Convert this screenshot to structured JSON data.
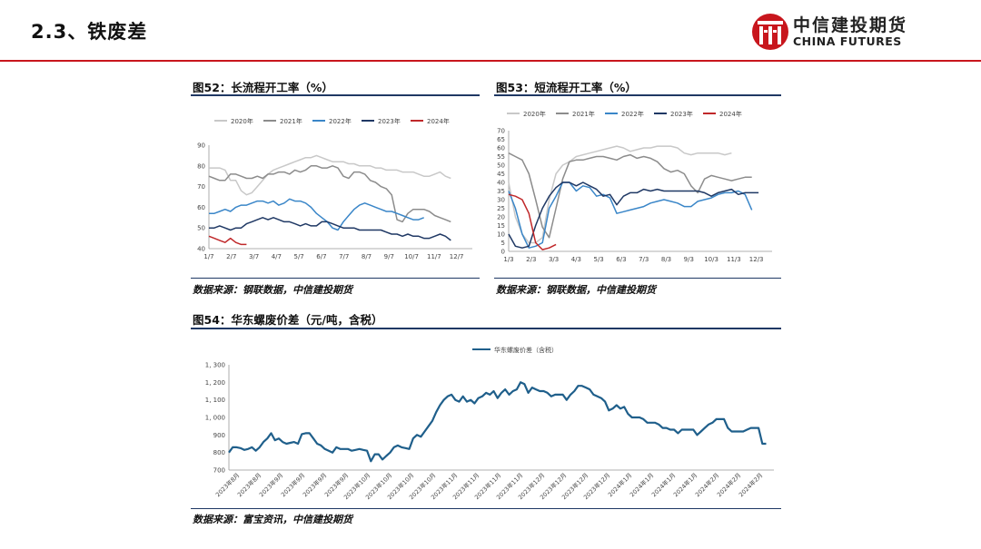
{
  "header": {
    "section_title": "2.3、铁废差",
    "logo_cn": "中信建投期货",
    "logo_en": "CHINA FUTURES"
  },
  "figures": {
    "fig52": {
      "title": "图52：长流程开工率（%）",
      "source": "数据来源：钢联数据，中信建投期货"
    },
    "fig53": {
      "title": "图53：短流程开工率（%）",
      "source": "数据来源：钢联数据，中信建投期货"
    },
    "fig54": {
      "title": "图54：华东螺废价差（元/吨，含税）",
      "source": "数据来源：富宝资讯，中信建投期货"
    }
  },
  "colors": {
    "2020": "#c8c8c8",
    "2021": "#8c8c8c",
    "2022": "#3a86c8",
    "2023": "#1f3864",
    "2024": "#c0282a",
    "spread": "#1f5f8b"
  },
  "chart_data": [
    {
      "id": "fig52",
      "type": "line",
      "x_ticks": [
        "1/7",
        "2/7",
        "3/7",
        "4/7",
        "5/7",
        "6/7",
        "7/7",
        "8/7",
        "9/7",
        "10/7",
        "11/7",
        "12/7"
      ],
      "ylim": [
        40,
        90
      ],
      "y_ticks": [
        40,
        50,
        60,
        70,
        80,
        90
      ],
      "legend_position": "top",
      "grid": false,
      "series": [
        {
          "name": "2020年",
          "color_key": "2020",
          "values": [
            79,
            79,
            79,
            78,
            73,
            73,
            68,
            66,
            67,
            70,
            73,
            76,
            78,
            79,
            80,
            81,
            82,
            83,
            84,
            84,
            85,
            84,
            83,
            82,
            82,
            82,
            81,
            81,
            80,
            80,
            80,
            79,
            79,
            78,
            78,
            78,
            77,
            77,
            77,
            76,
            75,
            75,
            76,
            77,
            75,
            74
          ]
        },
        {
          "name": "2021年",
          "color_key": "2021",
          "values": [
            75,
            74,
            73,
            73,
            76,
            76,
            75,
            74,
            74,
            75,
            74,
            76,
            76,
            77,
            77,
            76,
            78,
            77,
            78,
            80,
            80,
            79,
            79,
            80,
            79,
            75,
            74,
            77,
            77,
            76,
            73,
            72,
            70,
            69,
            66,
            54,
            53,
            57,
            59,
            59,
            59,
            58,
            56,
            55,
            54,
            53
          ]
        },
        {
          "name": "2022年",
          "color_key": "2022",
          "values": [
            57,
            57,
            58,
            59,
            58,
            60,
            61,
            61,
            62,
            63,
            63,
            62,
            63,
            61,
            62,
            64,
            63,
            63,
            62,
            60,
            57,
            55,
            53,
            50,
            49,
            53,
            56,
            59,
            61,
            62,
            61,
            60,
            59,
            58,
            58,
            57,
            56,
            55,
            54,
            54,
            55
          ]
        },
        {
          "name": "2023年",
          "color_key": "2023",
          "values": [
            50,
            50,
            51,
            50,
            49,
            50,
            50,
            52,
            53,
            54,
            55,
            54,
            55,
            54,
            53,
            53,
            52,
            51,
            52,
            51,
            51,
            53,
            53,
            52,
            51,
            50,
            50,
            50,
            49,
            49,
            49,
            49,
            49,
            48,
            47,
            47,
            46,
            47,
            46,
            46,
            45,
            45,
            46,
            47,
            46,
            44
          ]
        },
        {
          "name": "2024年",
          "color_key": "2024",
          "values": [
            46,
            45,
            44,
            43,
            45,
            43,
            42,
            42
          ]
        }
      ]
    },
    {
      "id": "fig53",
      "type": "line",
      "x_ticks": [
        "1/3",
        "2/3",
        "3/3",
        "4/3",
        "5/3",
        "6/3",
        "7/3",
        "8/3",
        "9/3",
        "10/3",
        "11/3",
        "12/3"
      ],
      "ylim": [
        0,
        70
      ],
      "y_ticks": [
        0,
        5,
        10,
        15,
        20,
        25,
        30,
        35,
        40,
        45,
        50,
        55,
        60,
        65,
        70
      ],
      "legend_position": "top",
      "grid": false,
      "series": [
        {
          "name": "2020年",
          "color_key": "2020",
          "values": [
            40,
            20,
            10,
            5,
            5,
            8,
            30,
            45,
            50,
            52,
            55,
            56,
            57,
            58,
            59,
            60,
            61,
            60,
            58,
            59,
            60,
            60,
            61,
            61,
            61,
            60,
            57,
            56,
            57,
            57,
            57,
            57,
            56,
            57
          ]
        },
        {
          "name": "2021年",
          "color_key": "2021",
          "values": [
            57,
            55,
            53,
            45,
            30,
            14,
            8,
            25,
            42,
            52,
            53,
            53,
            54,
            55,
            55,
            54,
            53,
            55,
            56,
            54,
            55,
            54,
            52,
            48,
            46,
            47,
            45,
            38,
            34,
            42,
            44,
            43,
            42,
            41,
            42,
            43,
            43
          ]
        },
        {
          "name": "2022年",
          "color_key": "2022",
          "values": [
            35,
            25,
            10,
            2,
            3,
            5,
            25,
            32,
            40,
            40,
            35,
            38,
            37,
            32,
            33,
            31,
            22,
            23,
            24,
            25,
            26,
            28,
            29,
            30,
            29,
            28,
            26,
            26,
            29,
            30,
            31,
            33,
            34,
            34,
            35,
            33,
            24
          ]
        },
        {
          "name": "2023年",
          "color_key": "2023",
          "values": [
            10,
            3,
            2,
            3,
            15,
            25,
            32,
            37,
            40,
            40,
            38,
            40,
            38,
            36,
            32,
            33,
            27,
            32,
            34,
            34,
            36,
            35,
            36,
            35,
            35,
            35,
            35,
            35,
            35,
            34,
            32,
            34,
            35,
            36,
            33,
            34,
            34,
            34
          ]
        },
        {
          "name": "2024年",
          "color_key": "2024",
          "values": [
            33,
            32,
            30,
            22,
            5,
            1,
            2,
            4
          ]
        }
      ]
    },
    {
      "id": "fig54",
      "type": "line",
      "x_ticks": [
        "2023年8月",
        "2023年8月",
        "2023年9月",
        "2023年9月",
        "2023年9月",
        "2023年9月",
        "2023年10月",
        "2023年10月",
        "2023年10月",
        "2023年10月",
        "2023年11月",
        "2023年11月",
        "2023年11月",
        "2023年11月",
        "2023年12月",
        "2023年12月",
        "2023年12月",
        "2023年12月",
        "2024年1月",
        "2024年1月",
        "2024年1月",
        "2024年1月",
        "2024年2月",
        "2024年2月",
        "2024年2月"
      ],
      "ylim": [
        700,
        1300
      ],
      "y_ticks": [
        700,
        800,
        900,
        1000,
        1100,
        1200,
        1300
      ],
      "legend_position": "top",
      "grid": false,
      "series": [
        {
          "name": "华东螺废价差（含税）",
          "color_key": "spread",
          "values": [
            800,
            830,
            830,
            825,
            815,
            820,
            830,
            810,
            830,
            860,
            880,
            910,
            870,
            880,
            860,
            850,
            855,
            860,
            850,
            905,
            910,
            910,
            880,
            850,
            840,
            820,
            810,
            800,
            830,
            820,
            820,
            820,
            810,
            815,
            820,
            815,
            810,
            750,
            790,
            790,
            760,
            780,
            800,
            830,
            840,
            830,
            825,
            820,
            880,
            900,
            890,
            920,
            950,
            980,
            1030,
            1070,
            1100,
            1120,
            1130,
            1100,
            1090,
            1120,
            1090,
            1100,
            1080,
            1110,
            1120,
            1140,
            1130,
            1150,
            1110,
            1140,
            1160,
            1130,
            1150,
            1160,
            1200,
            1190,
            1140,
            1170,
            1160,
            1150,
            1150,
            1140,
            1120,
            1130,
            1130,
            1130,
            1100,
            1130,
            1150,
            1180,
            1180,
            1170,
            1160,
            1130,
            1120,
            1110,
            1090,
            1040,
            1050,
            1070,
            1050,
            1060,
            1020,
            1000,
            1000,
            1000,
            990,
            970,
            970,
            970,
            960,
            940,
            940,
            930,
            930,
            910,
            930,
            930,
            930,
            930,
            900,
            920,
            940,
            960,
            970,
            990,
            990,
            990,
            940,
            920,
            920,
            920,
            920,
            930,
            940,
            940,
            940,
            850,
            850
          ]
        }
      ]
    }
  ]
}
